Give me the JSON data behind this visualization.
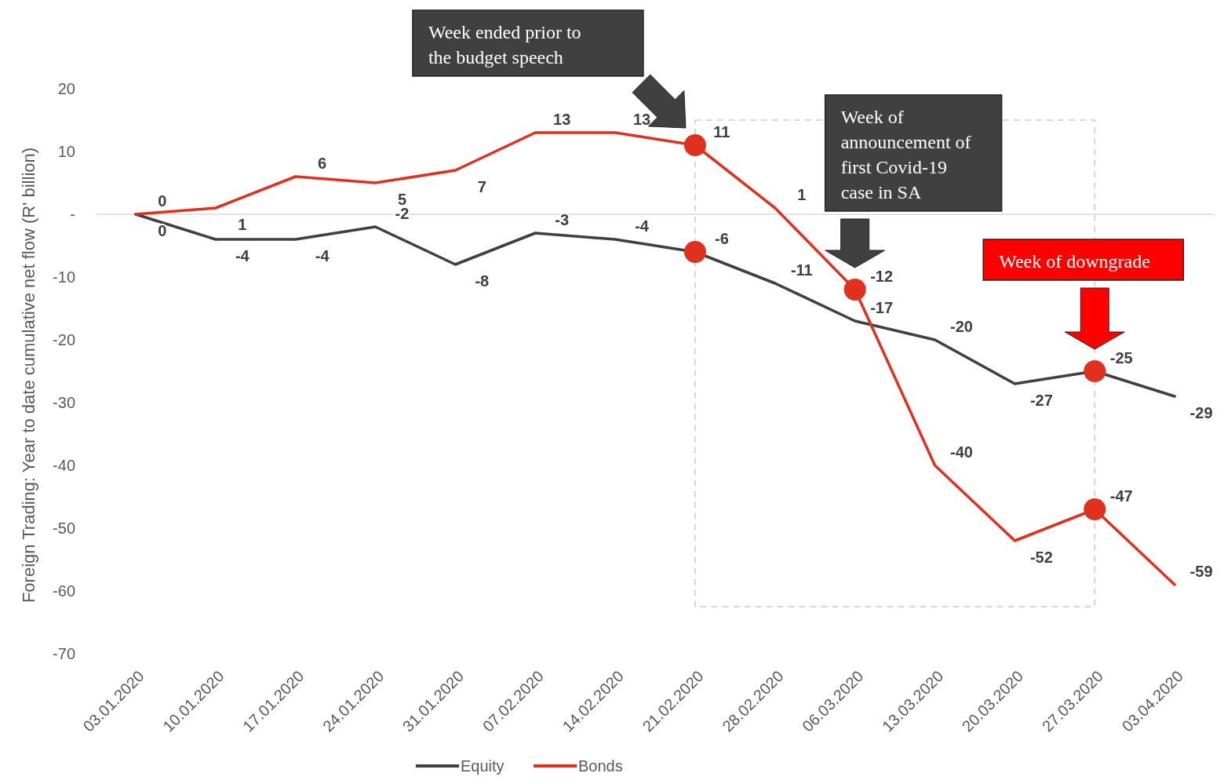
{
  "chart_data": {
    "type": "line",
    "ylabel": "Foreign Trading: Year to date cumulative net flow (R' billion)",
    "categories": [
      "03.01.2020",
      "10.01.2020",
      "17.01.2020",
      "24.01.2020",
      "31.01.2020",
      "07.02.2020",
      "14.02.2020",
      "21.02.2020",
      "28.02.2020",
      "06.03.2020",
      "13.03.2020",
      "20.03.2020",
      "27.03.2020",
      "03.04.2020"
    ],
    "series": [
      {
        "name": "Equity",
        "color": "#404040",
        "values": [
          0,
          -4,
          -4,
          -2,
          -8,
          -3,
          -4,
          -6,
          -11,
          -17,
          -20,
          -27,
          -25,
          -29
        ]
      },
      {
        "name": "Bonds",
        "color": "#e0301e",
        "values": [
          0,
          1,
          6,
          5,
          7,
          13,
          13,
          11,
          1,
          -12,
          -40,
          -52,
          -47,
          -59
        ]
      },
      {
        "type": "scatter",
        "color": "#e0301e",
        "marker": "circle",
        "x": [
          "21.02.2020",
          "21.02.2020",
          "06.03.2020",
          "27.03.2020",
          "27.03.2020"
        ],
        "values": [
          11,
          -6,
          -12,
          -25,
          -47
        ],
        "value_labels": [
          null,
          null,
          null,
          null,
          null
        ]
      }
    ],
    "ylim": [
      -70,
      20
    ],
    "yticks": [
      -70,
      -60,
      -50,
      -40,
      -30,
      -20,
      -10,
      {
        "value": 0,
        "label": "-"
      },
      10,
      20
    ],
    "data_labels": true,
    "legend": "bottom",
    "line_style": "solid",
    "annotations": [
      "Week ended prior to the budget speech",
      "Week of announcement of first Covid-19 case in SA",
      "Week of downgrade"
    ]
  }
}
